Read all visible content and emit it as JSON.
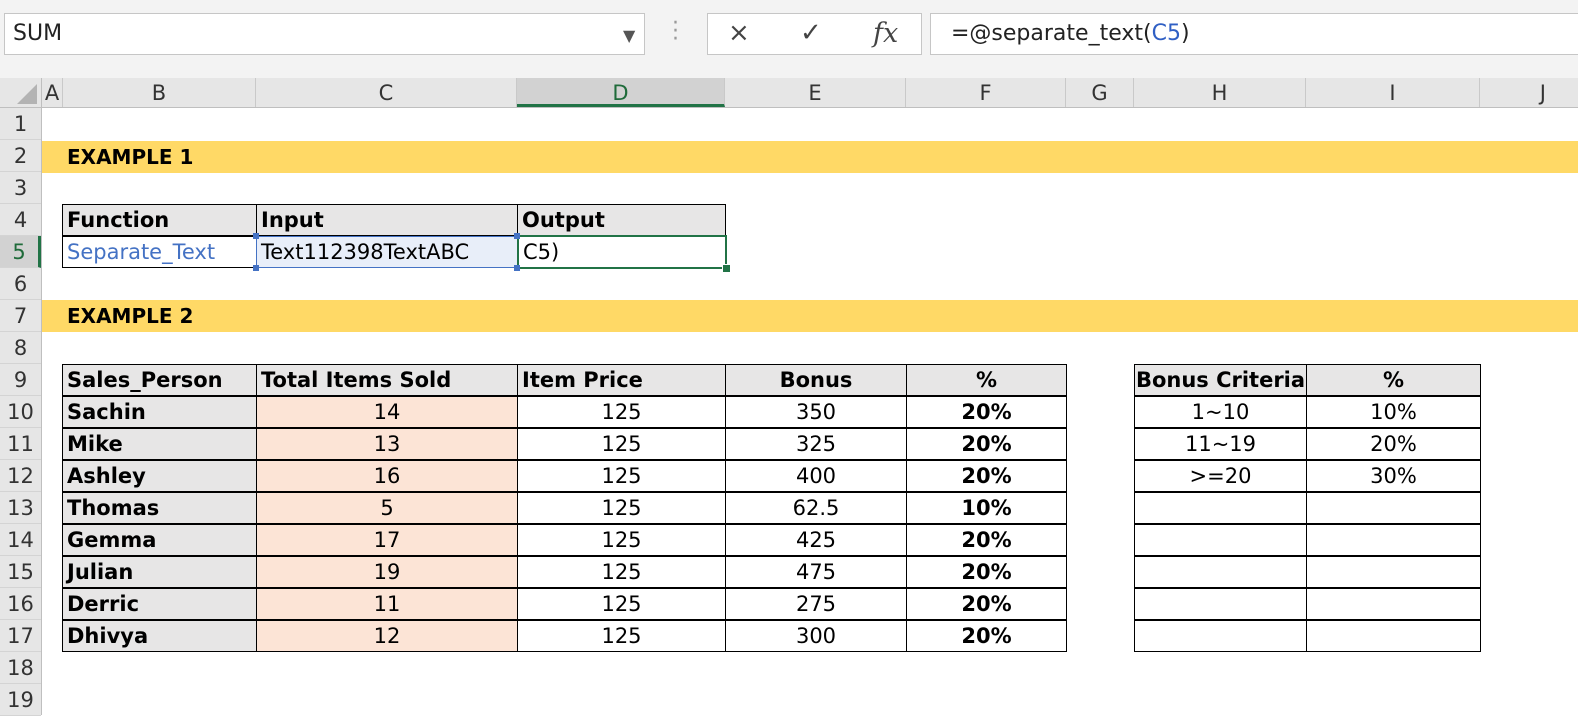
{
  "formula_bar": {
    "name_box": "SUM",
    "formula_prefix": "=@separate_text(",
    "formula_ref": "C5",
    "formula_suffix": ")",
    "cancel_icon": "×",
    "enter_icon": "✓",
    "fx_label": "fx"
  },
  "columns": [
    "A",
    "B",
    "C",
    "D",
    "E",
    "F",
    "G",
    "H",
    "I",
    "J"
  ],
  "rows": [
    "1",
    "2",
    "3",
    "4",
    "5",
    "6",
    "7",
    "8",
    "9",
    "10",
    "11",
    "12",
    "13",
    "14",
    "15",
    "16",
    "17",
    "18",
    "19"
  ],
  "example1": {
    "banner": "EXAMPLE 1",
    "headers": [
      "Function",
      "Input",
      "Output"
    ],
    "function": "Separate_Text",
    "input": "Text112398TextABC",
    "output": "C5)"
  },
  "example2": {
    "banner": "EXAMPLE 2",
    "headers": [
      "Sales_Person",
      "Total Items Sold",
      "Item Price",
      "Bonus",
      "%"
    ],
    "rows": [
      {
        "name": "Sachin",
        "sold": "14",
        "price": "125",
        "bonus": "350",
        "pct": "20%"
      },
      {
        "name": "Mike",
        "sold": "13",
        "price": "125",
        "bonus": "325",
        "pct": "20%"
      },
      {
        "name": "Ashley",
        "sold": "16",
        "price": "125",
        "bonus": "400",
        "pct": "20%"
      },
      {
        "name": "Thomas",
        "sold": "5",
        "price": "125",
        "bonus": "62.5",
        "pct": "10%"
      },
      {
        "name": "Gemma",
        "sold": "17",
        "price": "125",
        "bonus": "425",
        "pct": "20%"
      },
      {
        "name": "Julian",
        "sold": "19",
        "price": "125",
        "bonus": "475",
        "pct": "20%"
      },
      {
        "name": "Derric",
        "sold": "11",
        "price": "125",
        "bonus": "275",
        "pct": "20%"
      },
      {
        "name": "Dhivya",
        "sold": "12",
        "price": "125",
        "bonus": "300",
        "pct": "20%"
      }
    ],
    "criteria_headers": [
      "Bonus Criteria",
      "%"
    ],
    "criteria": [
      {
        "range": "1~10",
        "pct": "10%"
      },
      {
        "range": "11~19",
        "pct": "20%"
      },
      {
        "range": ">=20",
        "pct": "30%"
      },
      {
        "range": "",
        "pct": ""
      },
      {
        "range": "",
        "pct": ""
      },
      {
        "range": "",
        "pct": ""
      },
      {
        "range": "",
        "pct": ""
      },
      {
        "range": "",
        "pct": ""
      }
    ]
  },
  "colors": {
    "banner": "#ffd966",
    "header_fill": "#e7e6e6",
    "peach": "#fce4d6",
    "active": "#217346",
    "ref_blue": "#4472c4"
  }
}
